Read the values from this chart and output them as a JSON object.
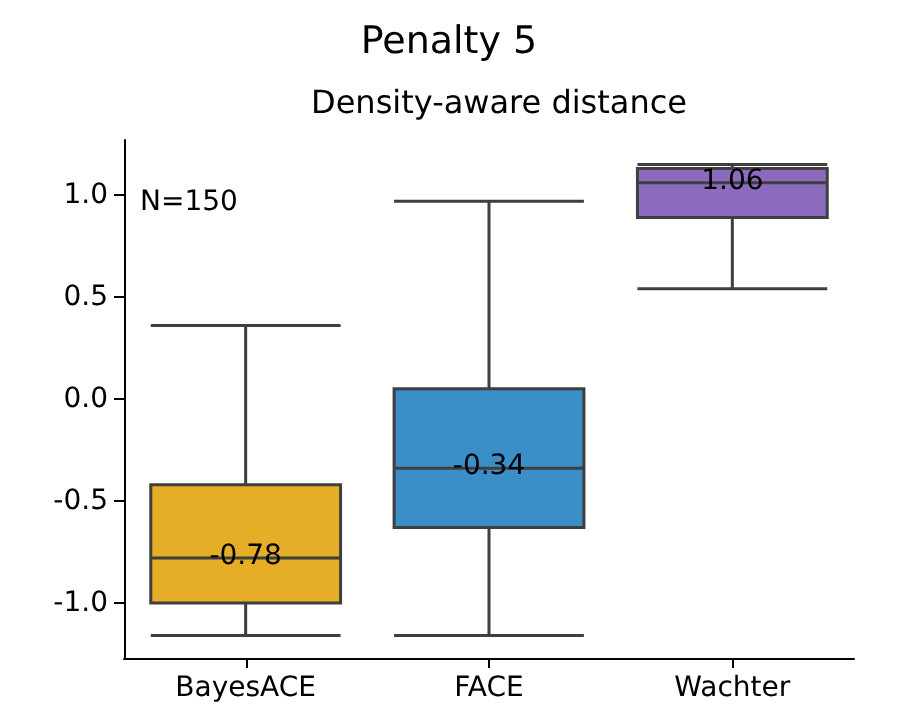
{
  "chart_data": {
    "type": "box",
    "title": "Penalty 5",
    "subtitle": "Density-aware distance",
    "categories": [
      "BayesACE",
      "FACE",
      "Wachter"
    ],
    "boxes": [
      {
        "low": -1.16,
        "q1": -1.0,
        "median": -0.78,
        "q3": -0.42,
        "high": 0.36
      },
      {
        "low": -1.16,
        "q1": -0.63,
        "median": -0.34,
        "q3": 0.05,
        "high": 0.97
      },
      {
        "low": 0.54,
        "q1": 0.89,
        "median": 1.06,
        "q3": 1.13,
        "high": 1.15
      }
    ],
    "colors": [
      "#e5ae26",
      "#3b8fc9",
      "#8c6bbf"
    ],
    "ylim": [
      -1.27,
      1.27
    ],
    "yticks": [
      {
        "value": -1,
        "label": "-1.0"
      },
      -0.5,
      {
        "value": 0,
        "label": "0.0"
      },
      0.5,
      {
        "value": 1,
        "label": "1.0"
      }
    ],
    "annotations": [
      "N=150",
      {
        "text": "-0.78",
        "x": "BayesACE",
        "y": -0.78
      },
      {
        "text": "-0.34",
        "x": "FACE",
        "y": -0.34
      },
      {
        "text": "1.06",
        "x": "Wachter",
        "y": 1.06
      }
    ]
  }
}
